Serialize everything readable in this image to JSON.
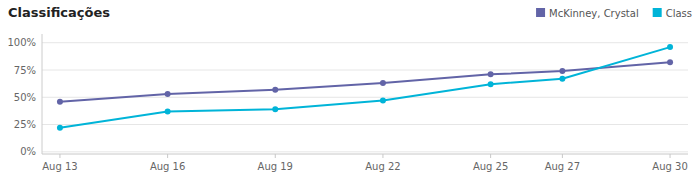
{
  "chart_data": {
    "type": "line",
    "title": "Classificações",
    "x": [
      0,
      3,
      6,
      9,
      12,
      14,
      17
    ],
    "xlim": [
      -0.5,
      17.5
    ],
    "xticks": [
      {
        "value": 0,
        "label": "Aug 13"
      },
      {
        "value": 3,
        "label": "Aug 16"
      },
      {
        "value": 6,
        "label": "Aug 19"
      },
      {
        "value": 9,
        "label": "Aug 22"
      },
      {
        "value": 12,
        "label": "Aug 25"
      },
      {
        "value": 14,
        "label": "Aug 27"
      },
      {
        "value": 17,
        "label": "Aug 30"
      }
    ],
    "ylim": [
      -0.02,
      1.08
    ],
    "yticks": [
      {
        "value": 0.0,
        "label": "0%"
      },
      {
        "value": 0.25,
        "label": "25%"
      },
      {
        "value": 0.5,
        "label": "50%"
      },
      {
        "value": 0.75,
        "label": "75%"
      },
      {
        "value": 1.0,
        "label": "100%"
      }
    ],
    "grid": true,
    "legend": "top-right",
    "marker": "circle",
    "line_style": "solid",
    "series": [
      {
        "name": "McKinney, Crystal",
        "color": "#6264a7",
        "values": [
          0.46,
          0.53,
          0.57,
          0.63,
          0.71,
          0.74,
          0.82
        ]
      },
      {
        "name": "Class",
        "color": "#00b4d8",
        "values": [
          0.22,
          0.37,
          0.39,
          0.47,
          0.62,
          0.67,
          0.96
        ]
      }
    ]
  }
}
